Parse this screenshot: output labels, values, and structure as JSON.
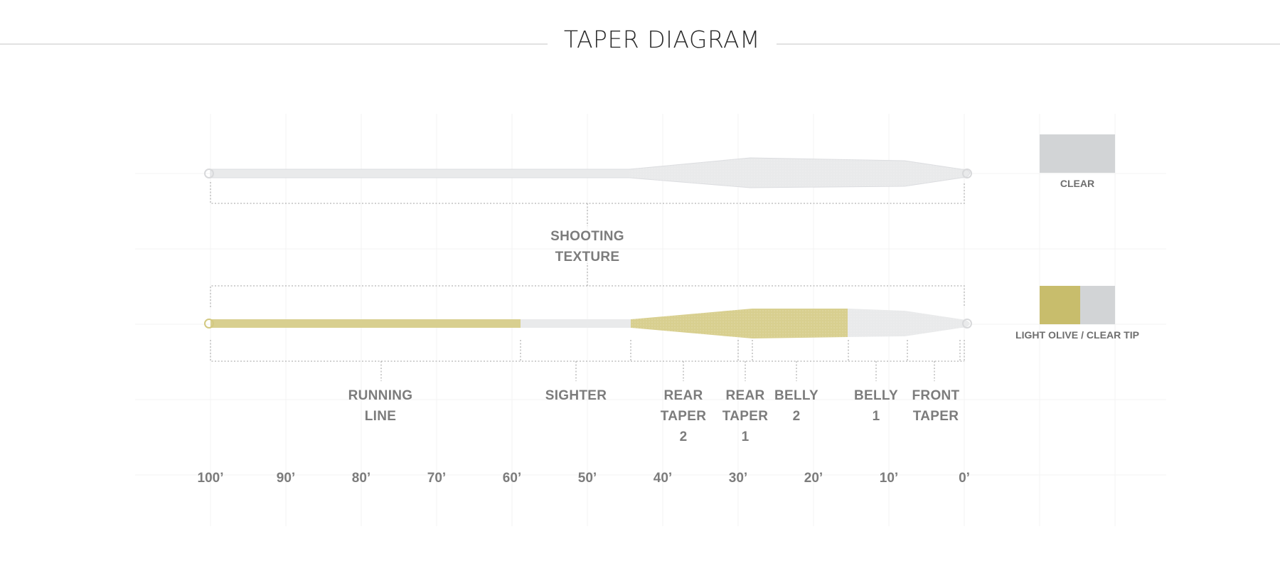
{
  "title": "TAPER DIAGRAM",
  "lines": [
    {
      "name": "clear",
      "color_label": "CLEAR",
      "colors": [
        "#d2d4d6"
      ],
      "top_label": [
        "SHOOTING",
        "TEXTURE"
      ]
    },
    {
      "name": "light-olive-clear-tip",
      "color_label": "LIGHT OLIVE / CLEAR TIP",
      "colors": [
        "#c8bd6c",
        "#d2d4d6"
      ],
      "sections": [
        {
          "id": "running-line",
          "label": [
            "RUNNING",
            "LINE"
          ]
        },
        {
          "id": "sighter",
          "label": [
            "SIGHTER"
          ]
        },
        {
          "id": "rear-taper-2",
          "label": [
            "REAR",
            "TAPER",
            "2"
          ]
        },
        {
          "id": "rear-taper-1",
          "label": [
            "REAR",
            "TAPER",
            "1"
          ]
        },
        {
          "id": "belly-2",
          "label": [
            "BELLY",
            "2"
          ]
        },
        {
          "id": "belly-1",
          "label": [
            "BELLY",
            "1"
          ]
        },
        {
          "id": "front-taper",
          "label": [
            "FRONT",
            "TAPER"
          ]
        }
      ]
    }
  ],
  "scale": [
    "100’",
    "90’",
    "80’",
    "70’",
    "60’",
    "50’",
    "40’",
    "30’",
    "20’",
    "10’",
    "0’"
  ],
  "colors": {
    "olive": "#d8cf8f",
    "clear": "#e9eaeb",
    "swatch_olive": "#c8bd6c",
    "swatch_clear": "#d2d4d6"
  }
}
